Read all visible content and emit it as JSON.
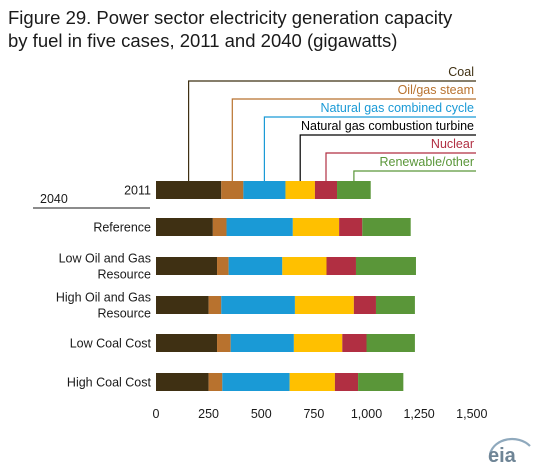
{
  "title_line1": "Figure 29. Power sector electricity generation capacity",
  "title_line2": "by fuel in five cases, 2011 and 2040 (gigawatts)",
  "logo_text": "eia",
  "chart_data": {
    "type": "bar",
    "orientation": "horizontal",
    "stacked": true,
    "title": "Figure 29. Power sector electricity generation capacity by fuel in five cases, 2011 and 2040 (gigawatts)",
    "group_label": "2040",
    "categories": [
      "2011",
      "Reference",
      "Low Oil and Gas Resource",
      "High Oil and  Gas Resource",
      "Low Coal Cost",
      "High Coal Cost"
    ],
    "category_lines": [
      [
        "2011"
      ],
      [
        "Reference"
      ],
      [
        "Low Oil and Gas",
        "Resource"
      ],
      [
        "High Oil and  Gas",
        "Resource"
      ],
      [
        "Low Coal Cost"
      ],
      [
        "High Coal Cost"
      ]
    ],
    "series": [
      {
        "name": "Coal",
        "color": "#3f3013",
        "values": [
          310,
          270,
          290,
          250,
          290,
          250
        ]
      },
      {
        "name": "Oil/gas steam",
        "color": "#b8722e",
        "values": [
          105,
          65,
          55,
          60,
          65,
          65
        ]
      },
      {
        "name": "Natural gas combined cycle",
        "color": "#1a9ad6",
        "values": [
          200,
          315,
          255,
          350,
          300,
          320
        ]
      },
      {
        "name": "Natural gas combustion turbine",
        "color": "#ffc000",
        "values": [
          140,
          220,
          210,
          280,
          230,
          215
        ]
      },
      {
        "name": "Nuclear",
        "color": "#b12f42",
        "values": [
          105,
          110,
          140,
          105,
          115,
          110
        ]
      },
      {
        "name": "Renewable/other",
        "color": "#5a9639",
        "values": [
          160,
          230,
          285,
          185,
          230,
          215
        ]
      }
    ],
    "legend_colors": [
      "#3f3013",
      "#b8722e",
      "#1a9ad6",
      "#000000",
      "#b12f42",
      "#5a9639"
    ],
    "xticks": [
      0,
      250,
      500,
      750,
      1000,
      1250,
      1500
    ],
    "xtick_labels": [
      "0",
      "250",
      "500",
      "750",
      "1,000",
      "1,250",
      "1,500"
    ],
    "xlim": [
      0,
      1500
    ],
    "xlabel": "",
    "ylabel": "",
    "grid": false,
    "legend_placement": "top-right, with leader lines to the 2011 bar"
  }
}
